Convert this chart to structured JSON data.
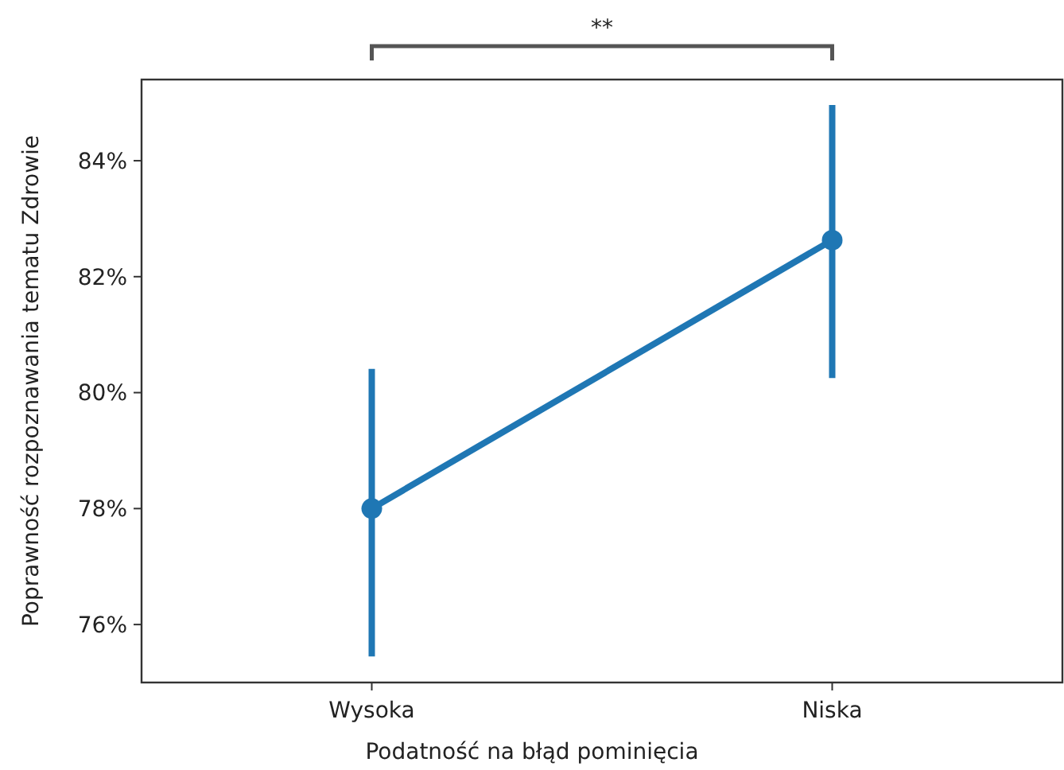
{
  "chart_data": {
    "type": "line",
    "xlabel": "Podatność na błąd pominięcia",
    "ylabel": "Poprawność rozpoznawania tematu Zdrowie",
    "categories": [
      "Wysoka",
      "Niska"
    ],
    "series": [
      {
        "color": "#1f77b4",
        "values": [
          78.0,
          82.63
        ],
        "errors": [
          [
            75.45,
            80.41
          ],
          [
            80.25,
            84.96
          ]
        ]
      }
    ],
    "ylim": [
      75.0,
      85.4
    ],
    "yticks": [
      {
        "value": 76,
        "label": "76%"
      },
      {
        "value": 78,
        "label": "78%"
      },
      {
        "value": 80,
        "label": "80%"
      },
      {
        "value": 82,
        "label": "82%"
      },
      {
        "value": 84,
        "label": "84%"
      }
    ],
    "marker": "circle",
    "line_style": "solid",
    "grid": false,
    "annotations": [
      "**"
    ]
  }
}
